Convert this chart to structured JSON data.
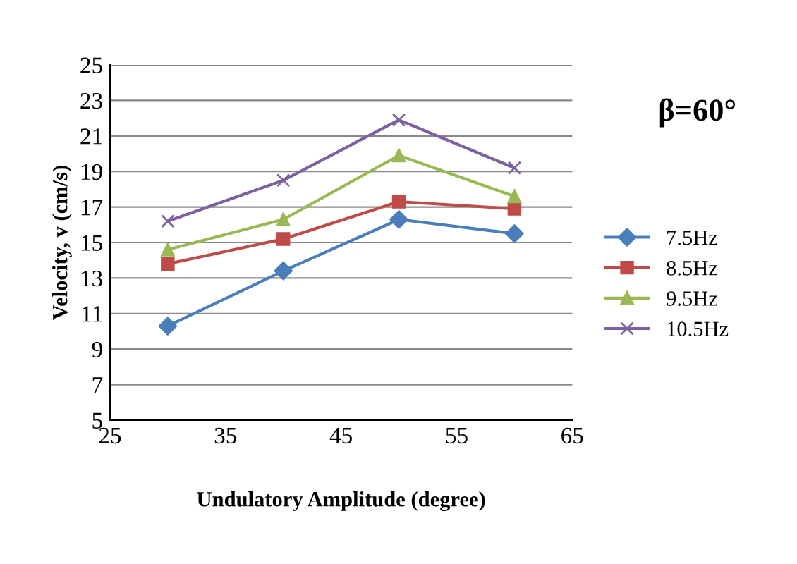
{
  "chart_data": {
    "type": "line",
    "xlabel": "Undulatory Amplitude (degree)",
    "ylabel": "Velocity, v (cm/s)",
    "annotations": [
      "β=60°"
    ],
    "x": [
      30,
      40,
      50,
      60
    ],
    "series": [
      {
        "name": "7.5Hz",
        "color": "#4a7ebb",
        "marker": "diamond",
        "values": [
          10.3,
          13.4,
          16.3,
          15.5
        ]
      },
      {
        "name": "8.5Hz",
        "color": "#be4b48",
        "marker": "square",
        "values": [
          13.8,
          15.2,
          17.3,
          16.9
        ]
      },
      {
        "name": "9.5Hz",
        "color": "#98b954",
        "marker": "triangle",
        "values": [
          14.6,
          16.3,
          19.9,
          17.6
        ]
      },
      {
        "name": "10.5Hz",
        "color": "#7d60a0",
        "marker": "cross",
        "values": [
          16.2,
          18.5,
          21.9,
          19.2
        ]
      }
    ],
    "xlim": [
      25,
      65
    ],
    "xticks": [
      25,
      35,
      45,
      55,
      65
    ],
    "ylim": [
      5,
      25
    ],
    "yticks": [
      5,
      7,
      9,
      11,
      13,
      15,
      17,
      19,
      21,
      23,
      25
    ],
    "grid": "y",
    "legend": "right",
    "line_style": "solid"
  }
}
